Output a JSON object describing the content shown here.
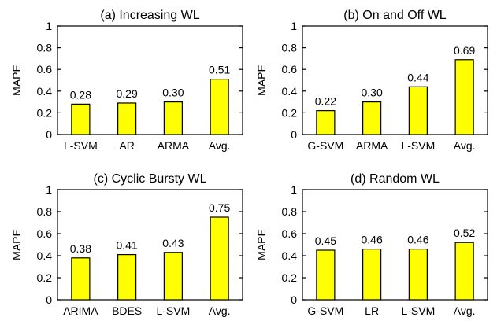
{
  "colors": {
    "bar_fill": "#ffff00",
    "bar_stroke": "#000000"
  },
  "chart_data": [
    {
      "type": "bar",
      "title": "(a) Increasing WL",
      "ylabel": "MAPE",
      "ylim": [
        0,
        1
      ],
      "yticks": [
        "0",
        "0.2",
        "0.4",
        "0.6",
        "0.8",
        "1"
      ],
      "categories": [
        "L-SVM",
        "AR",
        "ARMA",
        "Avg."
      ],
      "values": [
        0.28,
        0.29,
        0.3,
        0.51
      ],
      "labels": [
        "0.28",
        "0.29",
        "0.30",
        "0.51"
      ]
    },
    {
      "type": "bar",
      "title": "(b) On and Off WL",
      "ylabel": "MAPE",
      "ylim": [
        0,
        1
      ],
      "yticks": [
        "0",
        "0.2",
        "0.4",
        "0.6",
        "0.8",
        "1"
      ],
      "categories": [
        "G-SVM",
        "ARMA",
        "L-SVM",
        "Avg."
      ],
      "values": [
        0.22,
        0.3,
        0.44,
        0.69
      ],
      "labels": [
        "0.22",
        "0.30",
        "0.44",
        "0.69"
      ]
    },
    {
      "type": "bar",
      "title": "(c) Cyclic Bursty WL",
      "ylabel": "MAPE",
      "ylim": [
        0,
        1
      ],
      "yticks": [
        "0",
        "0.2",
        "0.4",
        "0.6",
        "0.8",
        "1"
      ],
      "categories": [
        "ARIMA",
        "BDES",
        "L-SVM",
        "Avg."
      ],
      "values": [
        0.38,
        0.41,
        0.43,
        0.75
      ],
      "labels": [
        "0.38",
        "0.41",
        "0.43",
        "0.75"
      ]
    },
    {
      "type": "bar",
      "title": "(d) Random WL",
      "ylabel": "MAPE",
      "ylim": [
        0,
        1
      ],
      "yticks": [
        "0",
        "0.2",
        "0.4",
        "0.6",
        "0.8",
        "1"
      ],
      "categories": [
        "G-SVM",
        "LR",
        "L-SVM",
        "Avg."
      ],
      "values": [
        0.45,
        0.46,
        0.46,
        0.52
      ],
      "labels": [
        "0.45",
        "0.46",
        "0.46",
        "0.52"
      ]
    }
  ]
}
